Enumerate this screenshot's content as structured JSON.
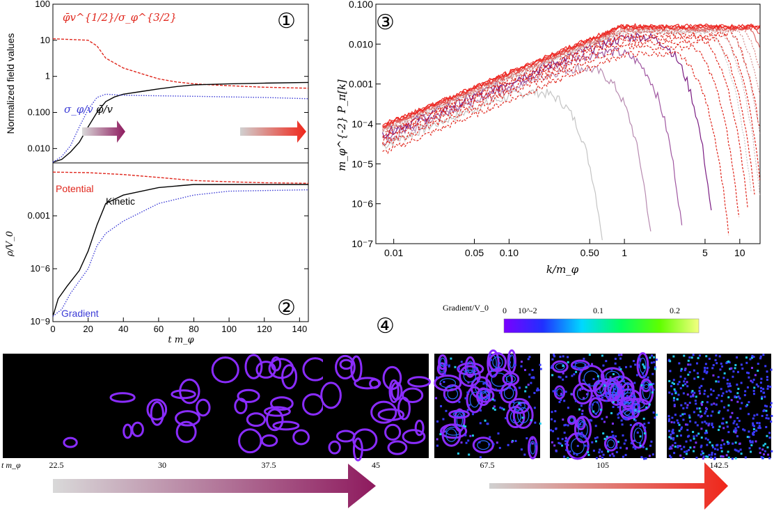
{
  "chart_data": [
    {
      "panel": "1",
      "type": "line",
      "ylabel": "Normalized field values",
      "yscale": "log",
      "xlim": [
        0,
        145
      ],
      "ylim": [
        0.004,
        100
      ],
      "yticks": [
        "100",
        "10",
        "1",
        "0.100",
        "0.010"
      ],
      "series": [
        {
          "name": "φ̄v^{1/2}/σ_φ^{3/2}",
          "color": "#e0261c",
          "style": "dashed",
          "x": [
            0,
            10,
            20,
            25,
            30,
            40,
            50,
            60,
            70,
            80,
            90,
            100,
            120,
            145
          ],
          "y": [
            11,
            10.5,
            10,
            7,
            3.2,
            1.7,
            1.2,
            0.85,
            0.7,
            0.62,
            0.58,
            0.55,
            0.5,
            0.47
          ]
        },
        {
          "name": "φ̄/v",
          "color": "#000000",
          "style": "solid",
          "x": [
            0,
            5,
            10,
            15,
            20,
            25,
            30,
            35,
            40,
            50,
            60,
            70,
            80,
            100,
            120,
            145
          ],
          "y": [
            0.0042,
            0.005,
            0.008,
            0.015,
            0.04,
            0.1,
            0.2,
            0.27,
            0.32,
            0.38,
            0.45,
            0.52,
            0.58,
            0.62,
            0.65,
            0.68
          ]
        },
        {
          "name": "σ_φ/v",
          "color": "#3b3bd6",
          "style": "dotted",
          "x": [
            0,
            5,
            10,
            15,
            20,
            25,
            30,
            35,
            40,
            60,
            80,
            100,
            120,
            145
          ],
          "y": [
            0.0042,
            0.006,
            0.012,
            0.04,
            0.12,
            0.26,
            0.32,
            0.31,
            0.3,
            0.29,
            0.28,
            0.27,
            0.26,
            0.24
          ]
        }
      ]
    },
    {
      "panel": "2",
      "type": "line",
      "xlabel": "t m_φ",
      "ylabel": "ρ/V_0",
      "yscale": "log",
      "xlim": [
        0,
        145
      ],
      "ylim": [
        1e-09,
        1
      ],
      "xticks": [
        "0",
        "20",
        "40",
        "60",
        "80",
        "100",
        "120",
        "140"
      ],
      "yticks": [
        "0.001",
        "10^-6",
        "10^-9"
      ],
      "series": [
        {
          "name": "Potential",
          "color": "#e0261c",
          "style": "dashed",
          "x": [
            0,
            20,
            40,
            60,
            80,
            100,
            120,
            145
          ],
          "y": [
            0.3,
            0.28,
            0.22,
            0.15,
            0.1,
            0.085,
            0.075,
            0.07
          ]
        },
        {
          "name": "Kinetic",
          "color": "#000000",
          "style": "solid",
          "x": [
            0,
            3,
            8,
            15,
            20,
            25,
            30,
            40,
            60,
            80,
            100,
            145
          ],
          "y": [
            2e-09,
            2e-08,
            1e-07,
            8e-07,
            1e-05,
            0.0003,
            0.005,
            0.015,
            0.04,
            0.06,
            0.06,
            0.06
          ]
        },
        {
          "name": "Gradient",
          "color": "#3b3bd6",
          "style": "dotted",
          "x": [
            0,
            5,
            10,
            20,
            25,
            30,
            40,
            60,
            80,
            100,
            145
          ],
          "y": [
            2e-09,
            5e-09,
            4e-08,
            1e-06,
            2e-05,
            0.0001,
            0.0005,
            0.005,
            0.015,
            0.025,
            0.03
          ]
        }
      ]
    },
    {
      "panel": "3",
      "type": "line",
      "xlabel": "k/m_φ",
      "ylabel": "m_φ^{-2} P_π[k]",
      "xscale": "log",
      "yscale": "log",
      "xlim": [
        0.007,
        15
      ],
      "ylim": [
        1e-07,
        0.1
      ],
      "xticks": [
        "0.01",
        "0.05",
        "0.10",
        "0.50",
        "1",
        "5",
        "10"
      ],
      "yticks": [
        "0.100",
        "0.010",
        "0.001",
        "10^-4",
        "10^-5",
        "10^-6",
        "10^-7"
      ]
    },
    {
      "panel": "4",
      "type": "heatmap",
      "colorbar_label": "Gradient/V_0",
      "colorbar_ticks": [
        "0",
        "10^-2",
        "0.1",
        "0.2"
      ],
      "row_label": "t m_φ",
      "snapshots": [
        "22.5",
        "30",
        "37.5",
        "45",
        "67.5",
        "105",
        "142.5"
      ]
    }
  ],
  "panel_markers": [
    "①",
    "②",
    "③",
    "④"
  ],
  "colors": {
    "red": "#e0261c",
    "purple": "#8e1a5e",
    "blue": "#3b3bd6",
    "grey": "#c8c8c8"
  }
}
